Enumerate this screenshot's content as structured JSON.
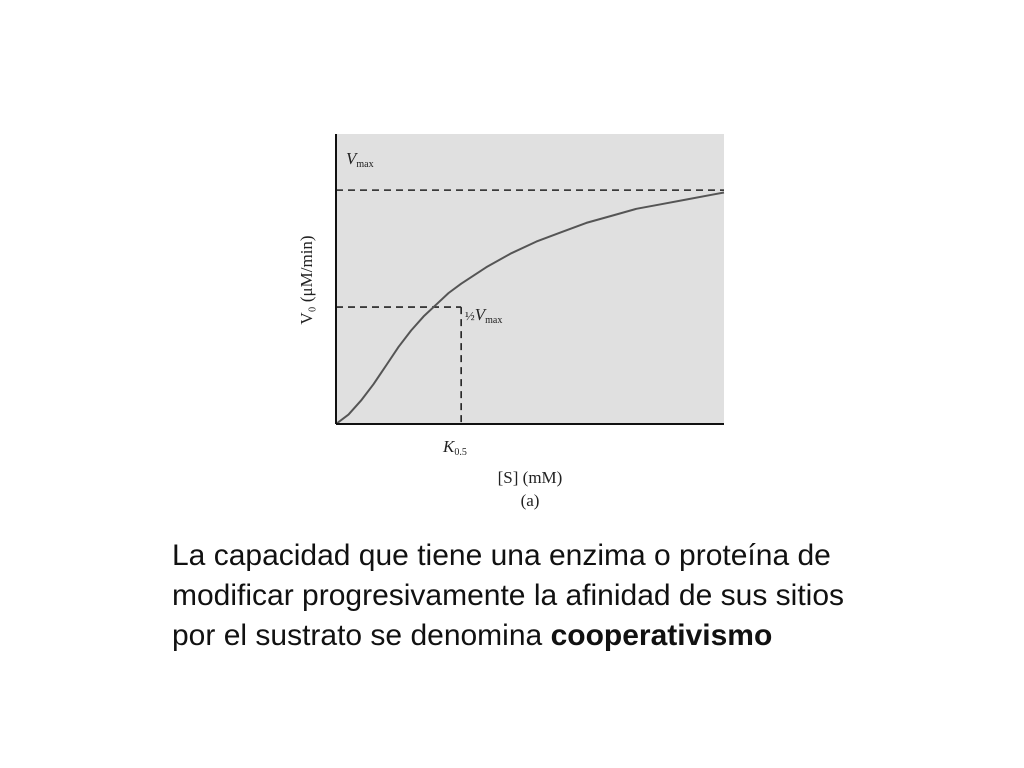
{
  "chart_data": {
    "type": "line",
    "ylabel": "V₀ (μM/min)",
    "xlabel": "[S] (mM)",
    "panel_label": "(a)",
    "ylim": [
      0,
      1.24
    ],
    "xlim": [
      0,
      3.1
    ],
    "grid": false,
    "background": "#e0e0e0",
    "series": [
      {
        "x": [
          0,
          0.1,
          0.2,
          0.3,
          0.4,
          0.5,
          0.6,
          0.7,
          0.8,
          0.9,
          1.0,
          1.2,
          1.4,
          1.6,
          1.8,
          2.0,
          2.2,
          2.4,
          2.6,
          2.8,
          3.0,
          3.1
        ],
        "y": [
          0.0,
          0.04,
          0.1,
          0.17,
          0.25,
          0.33,
          0.4,
          0.46,
          0.51,
          0.56,
          0.6,
          0.67,
          0.73,
          0.78,
          0.82,
          0.86,
          0.89,
          0.92,
          0.94,
          0.96,
          0.98,
          0.99
        ],
        "color": "#555555"
      }
    ],
    "reference_lines": {
      "vmax": {
        "y": 1.0,
        "label_main": "V",
        "label_sub": "max"
      },
      "half_vmax": {
        "y": 0.5,
        "label_fraction": "½",
        "label_main": "V",
        "label_sub": "max"
      },
      "k05": {
        "x": 1.0,
        "label_main": "K",
        "label_sub": "0.5"
      }
    }
  },
  "caption": {
    "text": "La capacidad que tiene una enzima o proteína de modificar progresivamente la afinidad de sus sitios por el sustrato se denomina",
    "bold": "cooperativismo"
  }
}
